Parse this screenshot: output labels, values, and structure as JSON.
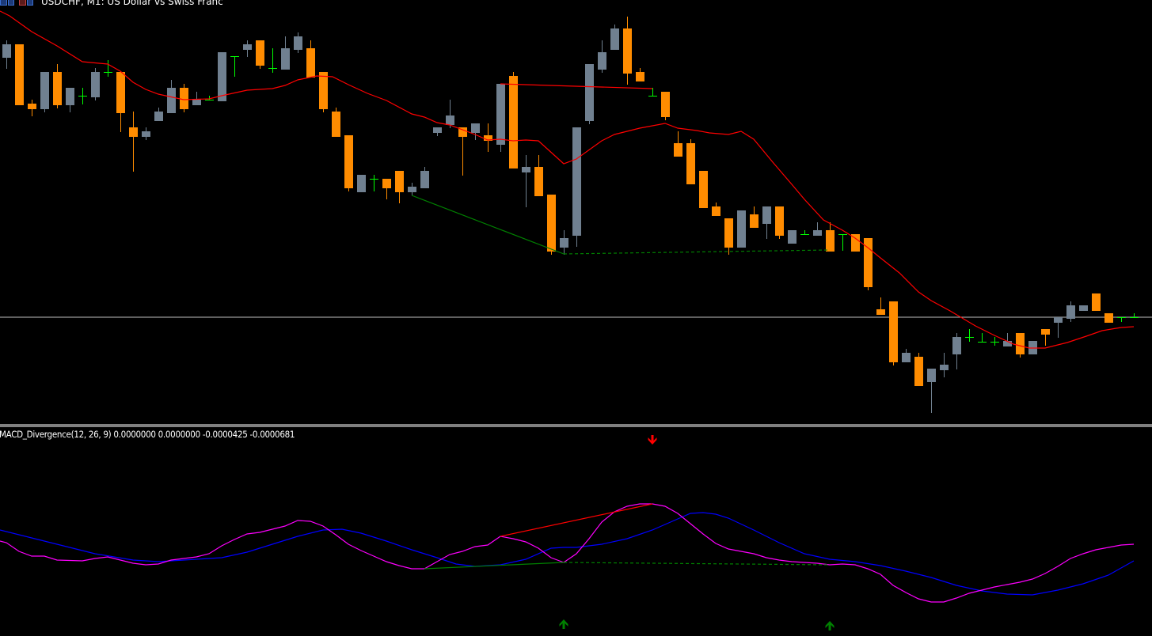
{
  "header": {
    "symbol": "USDCHF",
    "timeframe": "M1",
    "title": "USDCHF, M1:  US Dollar vs Swiss Franc",
    "icons": [
      "window-tile-icon",
      "window-cascade-icon"
    ]
  },
  "indicator": {
    "label": "MACD_Divergence(12, 26, 9) 0.0000000 0.0000000 -0.0000425 -0.0000681",
    "name": "MACD_Divergence",
    "params": [
      12,
      26,
      9
    ],
    "values": [
      "0.0000000",
      "0.0000000",
      "-0.0000425",
      "-0.0000681"
    ],
    "signals": [
      {
        "type": "bearish-divergence",
        "arrow": "down",
        "color": "#ff0000"
      },
      {
        "type": "bullish-divergence",
        "arrow": "up",
        "color": "#008000"
      },
      {
        "type": "bullish-divergence",
        "arrow": "up",
        "color": "#008000"
      }
    ]
  },
  "colors": {
    "background": "#000000",
    "bull_candle": "#708090",
    "bear_candle": "#ff8c00",
    "doji": "#00ff00",
    "moving_average": "#ff0000",
    "macd_line": "#ff00ff",
    "signal_line": "#0000ff",
    "bid_line": "#c0c0c0",
    "bearish_divergence": "#ff0000",
    "bullish_divergence": "#008000"
  }
}
